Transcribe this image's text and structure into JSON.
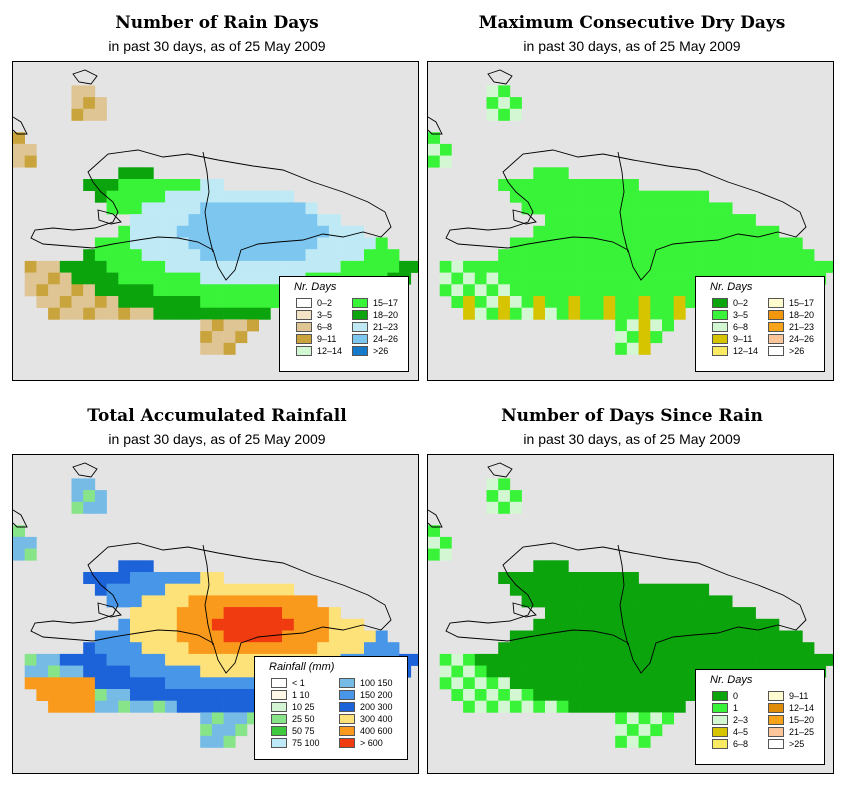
{
  "panels": [
    {
      "title": "Number of Rain Days",
      "subtitle": "in past 30 days, as of  25 May 2009",
      "legend_title": "Nr. Days",
      "legend_items": [
        {
          "label": "0–2",
          "color": "#ffffff"
        },
        {
          "label": "3–5",
          "color": "#f2e2c6"
        },
        {
          "label": "6–8",
          "color": "#dfc594"
        },
        {
          "label": "9–11",
          "color": "#c9a43c"
        },
        {
          "label": "12–14",
          "color": "#d2f7d2"
        },
        {
          "label": "15–17",
          "color": "#39f339"
        },
        {
          "label": "18–20",
          "color": "#0ca40c"
        },
        {
          "label": "21–23",
          "color": "#bfeaf5"
        },
        {
          "label": "24–26",
          "color": "#7cc6ef"
        },
        {
          "label": ">26",
          "color": "#1479c8"
        }
      ]
    },
    {
      "title": "Maximum Consecutive Dry Days",
      "subtitle": "in past 30 days, as of  25 May 2009",
      "legend_title": "Nr. Days",
      "legend_items": [
        {
          "label": "0–2",
          "color": "#0ca40c"
        },
        {
          "label": "3–5",
          "color": "#39f339"
        },
        {
          "label": "6–8",
          "color": "#d2f7d2"
        },
        {
          "label": "9–11",
          "color": "#d6c400"
        },
        {
          "label": "12–14",
          "color": "#f9ea64"
        },
        {
          "label": "15–17",
          "color": "#fffccf"
        },
        {
          "label": "18–20",
          "color": "#f1970c"
        },
        {
          "label": "21–23",
          "color": "#f8a41a"
        },
        {
          "label": "24–26",
          "color": "#fcc69a"
        },
        {
          "label": ">26",
          "color": "#ffffff"
        }
      ]
    },
    {
      "title": "Total Accumulated Rainfall",
      "subtitle": "in past 30 days, as of  25 May 2009",
      "legend_title": "Rainfall (mm)",
      "legend_items": [
        {
          "label": "< 1",
          "color": "#ffffff"
        },
        {
          "label": "1    10",
          "color": "#fff8e6"
        },
        {
          "label": "10    25",
          "color": "#d3f5d3"
        },
        {
          "label": "25    50",
          "color": "#88e488"
        },
        {
          "label": "50    75",
          "color": "#3ec83e"
        },
        {
          "label": "75  100",
          "color": "#bdeaf6"
        },
        {
          "label": "100  150",
          "color": "#76bbe6"
        },
        {
          "label": "150  200",
          "color": "#4796e8"
        },
        {
          "label": "200  300",
          "color": "#1c62d9"
        },
        {
          "label": "300  400",
          "color": "#fde27a"
        },
        {
          "label": "400  600",
          "color": "#fa9a1c"
        },
        {
          "label": "> 600",
          "color": "#f03a10"
        }
      ]
    },
    {
      "title": "Number of Days Since Rain",
      "subtitle": "in past 30 days, as of  25 May 2009",
      "legend_title": "Nr. Days",
      "legend_items": [
        {
          "label": "0",
          "color": "#0ca40c"
        },
        {
          "label": "1",
          "color": "#39f339"
        },
        {
          "label": "2–3",
          "color": "#d2f7d2"
        },
        {
          "label": "4–5",
          "color": "#d6c400"
        },
        {
          "label": "6–8",
          "color": "#f9ea64"
        },
        {
          "label": "9–11",
          "color": "#fffccf"
        },
        {
          "label": "12–14",
          "color": "#e18c08"
        },
        {
          "label": "15–20",
          "color": "#f8a41a"
        },
        {
          "label": "21–25",
          "color": "#fcc69a"
        },
        {
          "label": ">25",
          "color": "#ffffff"
        }
      ]
    }
  ]
}
